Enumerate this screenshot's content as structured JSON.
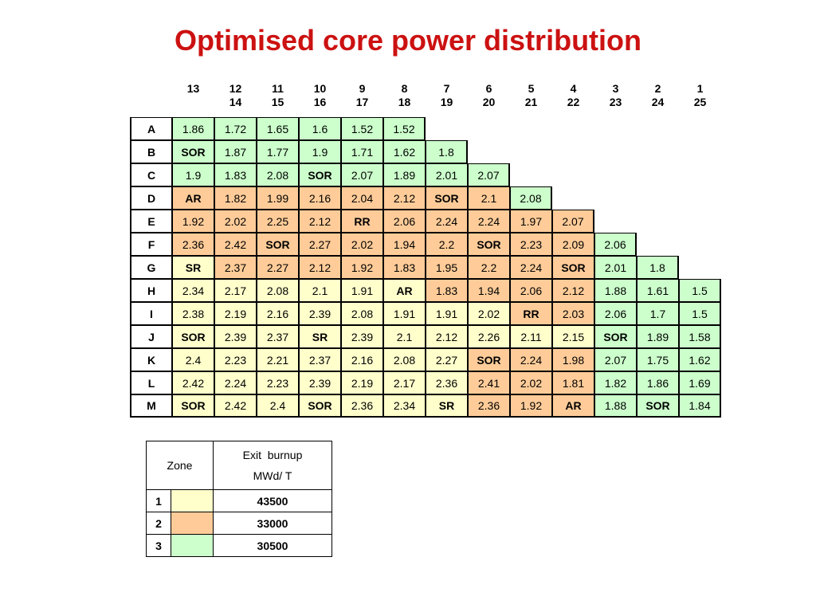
{
  "title": "Optimised core power distribution",
  "column_headers": [
    {
      "top": "13",
      "bottom": ""
    },
    {
      "top": "12",
      "bottom": "14"
    },
    {
      "top": "11",
      "bottom": "15"
    },
    {
      "top": "10",
      "bottom": "16"
    },
    {
      "top": "9",
      "bottom": "17"
    },
    {
      "top": "8",
      "bottom": "18"
    },
    {
      "top": "7",
      "bottom": "19"
    },
    {
      "top": "6",
      "bottom": "20"
    },
    {
      "top": "5",
      "bottom": "21"
    },
    {
      "top": "4",
      "bottom": "22"
    },
    {
      "top": "3",
      "bottom": "23"
    },
    {
      "top": "2",
      "bottom": "24"
    },
    {
      "top": "1",
      "bottom": "25"
    }
  ],
  "zone_colors": {
    "1": "#ffffcc",
    "2": "#ffcc99",
    "3": "#ccffcc"
  },
  "rows": [
    {
      "label": "A",
      "cells": [
        [
          "1.86",
          3
        ],
        [
          "1.72",
          3
        ],
        [
          "1.65",
          3
        ],
        [
          "1.6",
          3
        ],
        [
          "1.52",
          3
        ],
        [
          "1.52",
          3
        ]
      ]
    },
    {
      "label": "B",
      "cells": [
        [
          "SOR",
          3
        ],
        [
          "1.87",
          3
        ],
        [
          "1.77",
          3
        ],
        [
          "1.9",
          3
        ],
        [
          "1.71",
          3
        ],
        [
          "1.62",
          3
        ],
        [
          "1.8",
          3
        ]
      ]
    },
    {
      "label": "C",
      "cells": [
        [
          "1.9",
          3
        ],
        [
          "1.83",
          3
        ],
        [
          "2.08",
          3
        ],
        [
          "SOR",
          3
        ],
        [
          "2.07",
          3
        ],
        [
          "1.89",
          3
        ],
        [
          "2.01",
          3
        ],
        [
          "2.07",
          3
        ]
      ]
    },
    {
      "label": "D",
      "cells": [
        [
          "AR",
          2
        ],
        [
          "1.82",
          2
        ],
        [
          "1.99",
          2
        ],
        [
          "2.16",
          2
        ],
        [
          "2.04",
          2
        ],
        [
          "2.12",
          2
        ],
        [
          "SOR",
          2
        ],
        [
          "2.1",
          2
        ],
        [
          "2.08",
          3
        ]
      ]
    },
    {
      "label": "E",
      "cells": [
        [
          "1.92",
          2
        ],
        [
          "2.02",
          2
        ],
        [
          "2.25",
          2
        ],
        [
          "2.12",
          2
        ],
        [
          "RR",
          2
        ],
        [
          "2.06",
          2
        ],
        [
          "2.24",
          2
        ],
        [
          "2.24",
          2
        ],
        [
          "1.97",
          2
        ],
        [
          "2.07",
          2
        ]
      ]
    },
    {
      "label": "F",
      "cells": [
        [
          "2.36",
          2
        ],
        [
          "2.42",
          2
        ],
        [
          "SOR",
          2
        ],
        [
          "2.27",
          2
        ],
        [
          "2.02",
          2
        ],
        [
          "1.94",
          2
        ],
        [
          "2.2",
          2
        ],
        [
          "SOR",
          2
        ],
        [
          "2.23",
          2
        ],
        [
          "2.09",
          2
        ],
        [
          "2.06",
          3
        ]
      ]
    },
    {
      "label": "G",
      "cells": [
        [
          "SR",
          1
        ],
        [
          "2.37",
          2
        ],
        [
          "2.27",
          2
        ],
        [
          "2.12",
          2
        ],
        [
          "1.92",
          2
        ],
        [
          "1.83",
          2
        ],
        [
          "1.95",
          2
        ],
        [
          "2.2",
          2
        ],
        [
          "2.24",
          2
        ],
        [
          "SOR",
          2
        ],
        [
          "2.01",
          3
        ],
        [
          "1.8",
          3
        ]
      ]
    },
    {
      "label": "H",
      "cells": [
        [
          "2.34",
          1
        ],
        [
          "2.17",
          1
        ],
        [
          "2.08",
          1
        ],
        [
          "2.1",
          1
        ],
        [
          "1.91",
          1
        ],
        [
          "AR",
          1
        ],
        [
          "1.83",
          2
        ],
        [
          "1.94",
          2
        ],
        [
          "2.06",
          2
        ],
        [
          "2.12",
          2
        ],
        [
          "1.88",
          3
        ],
        [
          "1.61",
          3
        ],
        [
          "1.5",
          3
        ]
      ]
    },
    {
      "label": "I",
      "cells": [
        [
          "2.38",
          1
        ],
        [
          "2.19",
          1
        ],
        [
          "2.16",
          1
        ],
        [
          "2.39",
          1
        ],
        [
          "2.08",
          1
        ],
        [
          "1.91",
          1
        ],
        [
          "1.91",
          1
        ],
        [
          "2.02",
          1
        ],
        [
          "RR",
          2
        ],
        [
          "2.03",
          2
        ],
        [
          "2.06",
          3
        ],
        [
          "1.7",
          3
        ],
        [
          "1.5",
          3
        ]
      ]
    },
    {
      "label": "J",
      "cells": [
        [
          "SOR",
          1
        ],
        [
          "2.39",
          1
        ],
        [
          "2.37",
          1
        ],
        [
          "SR",
          1
        ],
        [
          "2.39",
          1
        ],
        [
          "2.1",
          1
        ],
        [
          "2.12",
          1
        ],
        [
          "2.26",
          1
        ],
        [
          "2.11",
          1
        ],
        [
          "2.15",
          1
        ],
        [
          "SOR",
          3
        ],
        [
          "1.89",
          3
        ],
        [
          "1.58",
          3
        ]
      ]
    },
    {
      "label": "K",
      "cells": [
        [
          "2.4",
          1
        ],
        [
          "2.23",
          1
        ],
        [
          "2.21",
          1
        ],
        [
          "2.37",
          1
        ],
        [
          "2.16",
          1
        ],
        [
          "2.08",
          1
        ],
        [
          "2.27",
          1
        ],
        [
          "SOR",
          2
        ],
        [
          "2.24",
          2
        ],
        [
          "1.98",
          2
        ],
        [
          "2.07",
          3
        ],
        [
          "1.75",
          3
        ],
        [
          "1.62",
          3
        ]
      ]
    },
    {
      "label": "L",
      "cells": [
        [
          "2.42",
          1
        ],
        [
          "2.24",
          1
        ],
        [
          "2.23",
          1
        ],
        [
          "2.39",
          1
        ],
        [
          "2.19",
          1
        ],
        [
          "2.17",
          1
        ],
        [
          "2.36",
          1
        ],
        [
          "2.41",
          2
        ],
        [
          "2.02",
          2
        ],
        [
          "1.81",
          2
        ],
        [
          "1.82",
          3
        ],
        [
          "1.86",
          3
        ],
        [
          "1.69",
          3
        ]
      ]
    },
    {
      "label": "M",
      "cells": [
        [
          "SOR",
          1
        ],
        [
          "2.42",
          1
        ],
        [
          "2.4",
          1
        ],
        [
          "SOR",
          1
        ],
        [
          "2.36",
          1
        ],
        [
          "2.34",
          1
        ],
        [
          "SR",
          1
        ],
        [
          "2.36",
          2
        ],
        [
          "1.92",
          2
        ],
        [
          "AR",
          2
        ],
        [
          "1.88",
          3
        ],
        [
          "SOR",
          3
        ],
        [
          "1.84",
          3
        ]
      ]
    }
  ],
  "legend": {
    "zone_header": "Zone",
    "burnup_header_line1": "Exit  burnup",
    "burnup_header_line2": "MWd/ T",
    "rows": [
      {
        "zone": "1",
        "zone_id": 1,
        "burnup": "43500"
      },
      {
        "zone": "2",
        "zone_id": 2,
        "burnup": "33000"
      },
      {
        "zone": "3",
        "zone_id": 3,
        "burnup": "30500"
      }
    ]
  }
}
